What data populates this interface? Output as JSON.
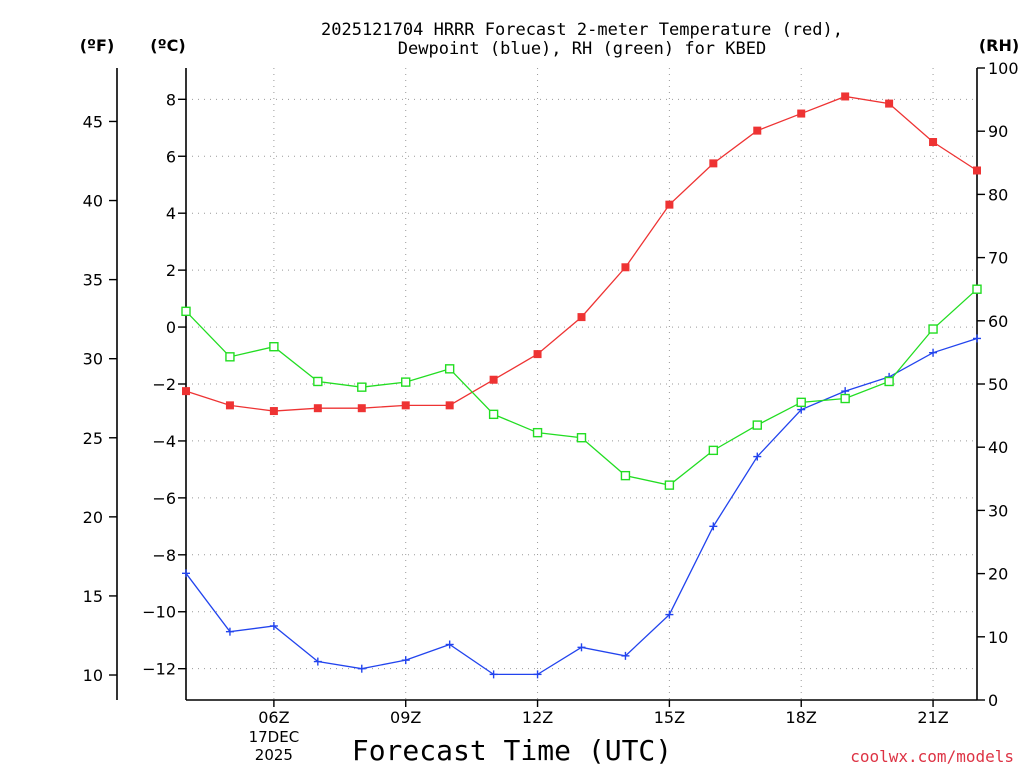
{
  "chart_data": {
    "type": "line",
    "title_lines": [
      "2025121704 HRRR Forecast 2-meter Temperature (red),",
      "Dewpoint (blue), RH (green) for KBED"
    ],
    "xlabel": "Forecast Time (UTC)",
    "credit": "coolwx.com/models",
    "units": {
      "fahrenheit": "(ºF)",
      "celsius": "(ºC)",
      "rh": "(RH)"
    },
    "x_hours": [
      4,
      5,
      6,
      7,
      8,
      9,
      10,
      11,
      12,
      13,
      14,
      15,
      16,
      17,
      18,
      19,
      20,
      21,
      22
    ],
    "xlim": [
      4,
      22
    ],
    "x_ticks": [
      {
        "hour": 6,
        "label": "06Z"
      },
      {
        "hour": 9,
        "label": "09Z"
      },
      {
        "hour": 12,
        "label": "12Z"
      },
      {
        "hour": 15,
        "label": "15Z"
      },
      {
        "hour": 18,
        "label": "18Z"
      },
      {
        "hour": 21,
        "label": "21Z"
      }
    ],
    "date_label": {
      "hour": 6,
      "lines": [
        "17DEC",
        "2025"
      ]
    },
    "celsius_axis": {
      "ylim": [
        -13.1,
        9.1
      ],
      "ticks": [
        8,
        6,
        4,
        2,
        0,
        -2,
        -4,
        -6,
        -8,
        -10,
        -12
      ],
      "tick_labels": [
        "8",
        "6",
        "4",
        "2",
        "0",
        "−2",
        "−4",
        "−6",
        "−8",
        "−10",
        "−12"
      ]
    },
    "fahrenheit_axis": {
      "ticks": [
        45,
        40,
        35,
        30,
        25,
        20,
        15,
        10
      ],
      "tick_labels": [
        "45",
        "40",
        "35",
        "30",
        "25",
        "20",
        "15",
        "10"
      ]
    },
    "rh_axis": {
      "ylim": [
        0,
        100
      ],
      "ticks": [
        100,
        90,
        80,
        70,
        60,
        50,
        40,
        30,
        20,
        10,
        0
      ],
      "tick_labels": [
        "100",
        "90",
        "80",
        "70",
        "60",
        "50",
        "40",
        "30",
        "20",
        "10",
        "0"
      ]
    },
    "series": [
      {
        "name": "Temperature",
        "color": "#ee3333",
        "marker": "filled-square",
        "axis": "celsius",
        "values": [
          -2.25,
          -2.75,
          -2.95,
          -2.85,
          -2.85,
          -2.75,
          -2.75,
          -1.85,
          -0.95,
          0.35,
          2.1,
          4.3,
          5.75,
          6.9,
          7.5,
          8.1,
          7.85,
          6.5,
          5.5
        ]
      },
      {
        "name": "Dewpoint",
        "color": "#2244ee",
        "marker": "plus",
        "axis": "celsius",
        "values": [
          -8.65,
          -10.7,
          -10.5,
          -11.75,
          -12.0,
          -11.7,
          -11.15,
          -12.2,
          -12.2,
          -11.25,
          -11.55,
          -10.1,
          -7.0,
          -4.55,
          -2.9,
          -2.25,
          -1.75,
          -0.9,
          -0.4
        ]
      },
      {
        "name": "RH",
        "color": "#22dd22",
        "marker": "open-square",
        "axis": "rh",
        "values": [
          61.5,
          54.3,
          55.9,
          50.4,
          49.5,
          50.3,
          52.4,
          45.2,
          42.3,
          41.5,
          35.5,
          34.0,
          39.5,
          43.5,
          47.1,
          47.7,
          50.4,
          58.7,
          65.0
        ]
      }
    ]
  }
}
